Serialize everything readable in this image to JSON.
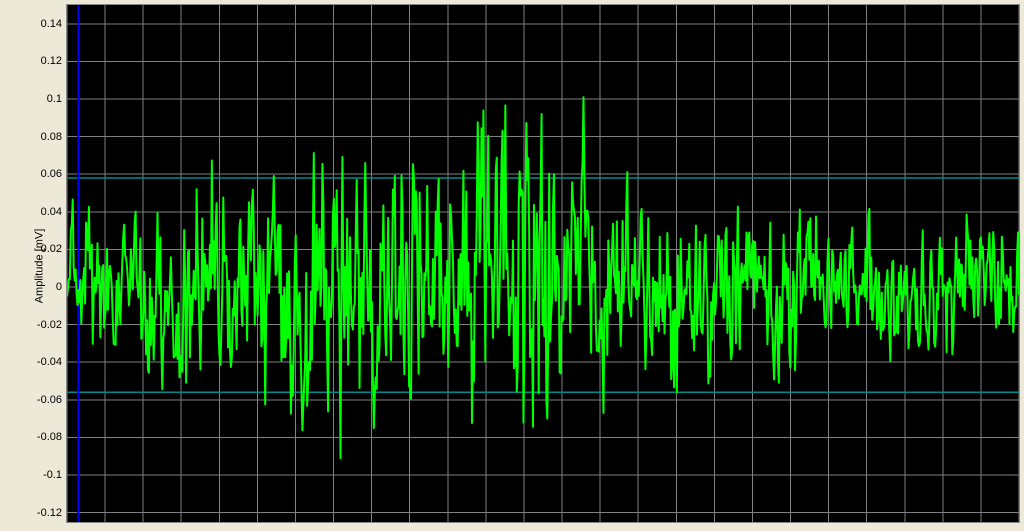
{
  "chart": {
    "type": "line",
    "ylabel": "Amplitude [mV]",
    "label_fontsize": 11,
    "background_color": "#000000",
    "frame_background": "#ece9d8",
    "grid_color": "#808080",
    "axis_border_color": "#888888",
    "line_color": "#00ff00",
    "line_width": 2,
    "cursor_color": "#0000ff",
    "cursor_width": 2,
    "cursor_x": 12,
    "threshold_color": "#008b8b",
    "threshold_upper": 0.058,
    "threshold_lower": -0.056,
    "ylim": [
      -0.125,
      0.15
    ],
    "ytick_step": 0.02,
    "yticks": [
      0.14,
      0.12,
      0.1,
      0.08,
      0.06,
      0.04,
      0.02,
      0,
      -0.02,
      -0.04,
      -0.06,
      -0.08,
      -0.1,
      -0.12
    ],
    "xlim": [
      0,
      1000
    ],
    "x_grid_count": 25,
    "n_points": 1000,
    "noise_seed": 42917,
    "amp_envelope": [
      [
        0,
        0.055
      ],
      [
        40,
        0.06
      ],
      [
        80,
        0.05
      ],
      [
        120,
        0.075
      ],
      [
        160,
        0.08
      ],
      [
        200,
        0.075
      ],
      [
        240,
        0.095
      ],
      [
        280,
        0.1
      ],
      [
        320,
        0.085
      ],
      [
        360,
        0.095
      ],
      [
        400,
        0.09
      ],
      [
        440,
        0.12
      ],
      [
        480,
        0.14
      ],
      [
        520,
        0.09
      ],
      [
        560,
        0.085
      ],
      [
        600,
        0.075
      ],
      [
        640,
        0.07
      ],
      [
        680,
        0.075
      ],
      [
        720,
        0.065
      ],
      [
        760,
        0.06
      ],
      [
        800,
        0.05
      ],
      [
        840,
        0.055
      ],
      [
        880,
        0.045
      ],
      [
        920,
        0.05
      ],
      [
        960,
        0.055
      ],
      [
        1000,
        0.05
      ]
    ]
  }
}
